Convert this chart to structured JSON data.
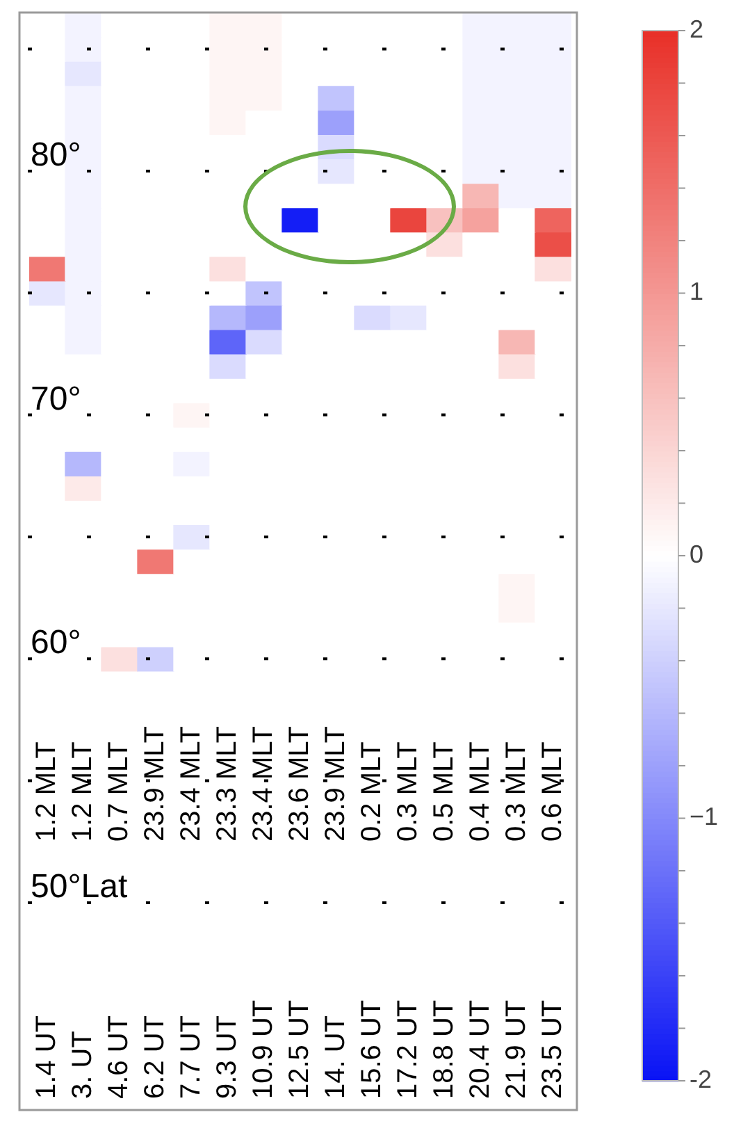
{
  "chart_data": {
    "type": "heatmap",
    "categories": [
      "1.4 UT",
      "3. UT",
      "4.6 UT",
      "6.2 UT",
      "7.7 UT",
      "9.3 UT",
      "10.9 UT",
      "12.5 UT",
      "14. UT",
      "15.6 UT",
      "17.2 UT",
      "18.8 UT",
      "20.4 UT",
      "21.9 UT",
      "23.5 UT"
    ],
    "annotations": [
      "1.2 MLT",
      "1.2 MLT",
      "0.7 MLT",
      "23.9 MLT",
      "23.4 MLT",
      "23.3 MLT",
      "23.4 MLT",
      "23.6 MLT",
      "23.9 MLT",
      "0.2 MLT",
      "0.3 MLT",
      "0.5 MLT",
      "0.4 MLT",
      "0.3 MLT",
      "0.6 MLT"
    ],
    "ylim": [
      41.5,
      86.5
    ],
    "yticks": [
      {
        "value": 85,
        "label": null
      },
      {
        "value": 80,
        "label": "80°"
      },
      {
        "value": 75,
        "label": null
      },
      {
        "value": 70,
        "label": "70°"
      },
      {
        "value": 65,
        "label": null
      },
      {
        "value": 60,
        "label": "60°"
      },
      {
        "value": 55,
        "label": null
      },
      {
        "value": 50,
        "label": "50°Lat"
      }
    ],
    "grid": "y",
    "clim": [
      -2,
      2
    ],
    "cticks": [
      -2,
      {
        "value": -1.8,
        "label": null
      },
      {
        "value": -1.6,
        "label": null
      },
      {
        "value": -1.4,
        "label": null
      },
      {
        "value": -1.2,
        "label": null
      },
      {
        "value": -1,
        "label": "−1"
      },
      {
        "value": -0.8,
        "label": null
      },
      {
        "value": -0.6,
        "label": null
      },
      {
        "value": -0.4,
        "label": null
      },
      {
        "value": -0.2,
        "label": null
      },
      0,
      {
        "value": 0.2,
        "label": null
      },
      {
        "value": 0.4,
        "label": null
      },
      {
        "value": 0.6,
        "label": null
      },
      {
        "value": 0.8,
        "label": null
      },
      1,
      {
        "value": 1.2,
        "label": null
      },
      {
        "value": 1.4,
        "label": null
      },
      {
        "value": 1.6,
        "label": null
      },
      {
        "value": 1.8,
        "label": null
      },
      2
    ],
    "cells": [
      [
        0,
        -0.1,
        0,
        0,
        0,
        0.1,
        0.1,
        0,
        0,
        0,
        0,
        0,
        -0.1,
        -0.1,
        -0.1
      ],
      [
        0,
        -0.1,
        0,
        0,
        0,
        0.1,
        0.1,
        0,
        0,
        0,
        0,
        0,
        -0.1,
        -0.1,
        -0.1
      ],
      [
        0,
        -0.2,
        0,
        0,
        0,
        0.1,
        0.1,
        0,
        0,
        0,
        0,
        0,
        -0.1,
        -0.1,
        -0.1
      ],
      [
        0,
        -0.1,
        0,
        0,
        0,
        0.1,
        0.1,
        0,
        -0.5,
        0,
        0,
        0,
        -0.1,
        -0.1,
        -0.1
      ],
      [
        0,
        -0.1,
        0,
        0,
        0,
        0.1,
        0,
        0,
        -0.8,
        0,
        0,
        0,
        -0.1,
        -0.1,
        -0.1
      ],
      [
        0,
        -0.1,
        0,
        0,
        0,
        0,
        0,
        0,
        -0.3,
        0,
        0,
        0,
        -0.1,
        -0.1,
        -0.1
      ],
      [
        0,
        -0.1,
        0,
        0,
        0,
        0,
        0,
        0,
        -0.2,
        0,
        0,
        0,
        -0.1,
        -0.1,
        -0.1
      ],
      [
        0,
        -0.1,
        0,
        0,
        0,
        0,
        0,
        0,
        0,
        0,
        0,
        0,
        0.7,
        -0.1,
        -0.1
      ],
      [
        0,
        -0.1,
        0,
        0,
        0,
        0,
        0,
        -1.9,
        0,
        0,
        1.8,
        0.6,
        0.9,
        0,
        1.5
      ],
      [
        0,
        -0.1,
        0,
        0,
        0,
        0,
        0,
        0,
        0,
        0,
        0,
        0.3,
        0,
        0,
        1.7
      ],
      [
        1.3,
        -0.1,
        0,
        0,
        0,
        0.3,
        0,
        0,
        0,
        0,
        0,
        0,
        0,
        0,
        0.3
      ],
      [
        -0.2,
        -0.1,
        0,
        0,
        0,
        0,
        -0.5,
        0,
        0,
        0,
        0,
        0,
        0,
        0,
        0
      ],
      [
        0,
        -0.1,
        0,
        0,
        0,
        -0.6,
        -0.8,
        0,
        0,
        -0.3,
        -0.2,
        0,
        0,
        0,
        0
      ],
      [
        0,
        -0.1,
        0,
        0,
        0,
        -1.3,
        -0.3,
        0,
        0,
        0,
        0,
        0,
        0,
        0.7,
        0
      ],
      [
        0,
        0,
        0,
        0,
        0,
        -0.3,
        0,
        0,
        0,
        0,
        0,
        0,
        0,
        0.3,
        0
      ],
      [
        0,
        0,
        0,
        0,
        0,
        0,
        0,
        0,
        0,
        0,
        0,
        0,
        0,
        0,
        0
      ],
      [
        0,
        0,
        0,
        0,
        0.1,
        0,
        0,
        0,
        0,
        0,
        0,
        0,
        0,
        0,
        0
      ],
      [
        0,
        0,
        0,
        0,
        0,
        0,
        0,
        0,
        0,
        0,
        0,
        0,
        0,
        0,
        0
      ],
      [
        0,
        -0.6,
        0,
        0,
        -0.1,
        0,
        0,
        0,
        0,
        0,
        0,
        0,
        0,
        0,
        0
      ],
      [
        0,
        0.2,
        0,
        0,
        0,
        0,
        0,
        0,
        0,
        0,
        0,
        0,
        0,
        0,
        0
      ],
      [
        0,
        0,
        0,
        0,
        0,
        0,
        0,
        0,
        0,
        0,
        0,
        0,
        0,
        0,
        0
      ],
      [
        0,
        0,
        0,
        0,
        -0.2,
        0,
        0,
        0,
        0,
        0,
        0,
        0,
        0,
        0,
        0
      ],
      [
        0,
        0,
        0,
        1.3,
        0,
        0,
        0,
        0,
        0,
        0,
        0,
        0,
        0,
        0,
        0
      ],
      [
        0,
        0,
        0,
        0,
        0,
        0,
        0,
        0,
        0,
        0,
        0,
        0,
        0,
        0.1,
        0
      ],
      [
        0,
        0,
        0,
        0,
        0,
        0,
        0,
        0,
        0,
        0,
        0,
        0,
        0,
        0.1,
        0
      ],
      [
        0,
        0,
        0,
        0,
        0,
        0,
        0,
        0,
        0,
        0,
        0,
        0,
        0,
        0,
        0
      ],
      [
        0,
        0,
        0.3,
        -0.4,
        0,
        0,
        0,
        0,
        0,
        0,
        0,
        0,
        0,
        0,
        0
      ],
      [
        0,
        0,
        0,
        0,
        0,
        0,
        0,
        0,
        0,
        0,
        0,
        0,
        0,
        0,
        0
      ],
      [
        0,
        0,
        0,
        0,
        0,
        0,
        0,
        0,
        0,
        0,
        0,
        0,
        0,
        0,
        0
      ],
      [
        0,
        0,
        0,
        0,
        0,
        0,
        0,
        0,
        0,
        0,
        0,
        0,
        0,
        0,
        0
      ],
      [
        0,
        0,
        0,
        0,
        0,
        0,
        0,
        0,
        0,
        0,
        0,
        0,
        0,
        0,
        0
      ],
      [
        0,
        0,
        0,
        0,
        0,
        0,
        0,
        0,
        0,
        0,
        0,
        0,
        0,
        0,
        0
      ],
      [
        0,
        0,
        0,
        0,
        0,
        0,
        0,
        0,
        0,
        0,
        0,
        0,
        0,
        0,
        0
      ],
      [
        0,
        0,
        0,
        0,
        0,
        0,
        0,
        0,
        0,
        0,
        0,
        0,
        0,
        0,
        0
      ],
      [
        0,
        0,
        0,
        0,
        0,
        0,
        0,
        0,
        0,
        0,
        0,
        0,
        0,
        0,
        0
      ],
      [
        0,
        0,
        0,
        0,
        0,
        0,
        0,
        0,
        0,
        0,
        0,
        0,
        0,
        0,
        0
      ],
      [
        0,
        0,
        0,
        0,
        0,
        0,
        0,
        0,
        0,
        0,
        0,
        0,
        0,
        0,
        0
      ],
      [
        0,
        0,
        0,
        0,
        0,
        0,
        0,
        0,
        0,
        0,
        0,
        0,
        0,
        0,
        0
      ],
      [
        0,
        0,
        0,
        0,
        0,
        0,
        0,
        0,
        0,
        0,
        0,
        0,
        0,
        0,
        0
      ],
      [
        0,
        0,
        0,
        0,
        0,
        0,
        0,
        0,
        0,
        0,
        0,
        0,
        0,
        0,
        0
      ],
      [
        0,
        0,
        0,
        0,
        0,
        0,
        0,
        0,
        0,
        0,
        0,
        0,
        0,
        0,
        0
      ],
      [
        0,
        0,
        0,
        0,
        0,
        0,
        0,
        0,
        0,
        0,
        0,
        0,
        0,
        0,
        0
      ],
      [
        0,
        0,
        0,
        0,
        0,
        0,
        0,
        0,
        0,
        0,
        0,
        0,
        0,
        0,
        0
      ],
      [
        0,
        0,
        0,
        0,
        0,
        0,
        0,
        0,
        0,
        0,
        0,
        0,
        0,
        0,
        0
      ],
      [
        0,
        0,
        0,
        0,
        0,
        0,
        0,
        0,
        0,
        0,
        0,
        0,
        0,
        0,
        0
      ]
    ]
  }
}
